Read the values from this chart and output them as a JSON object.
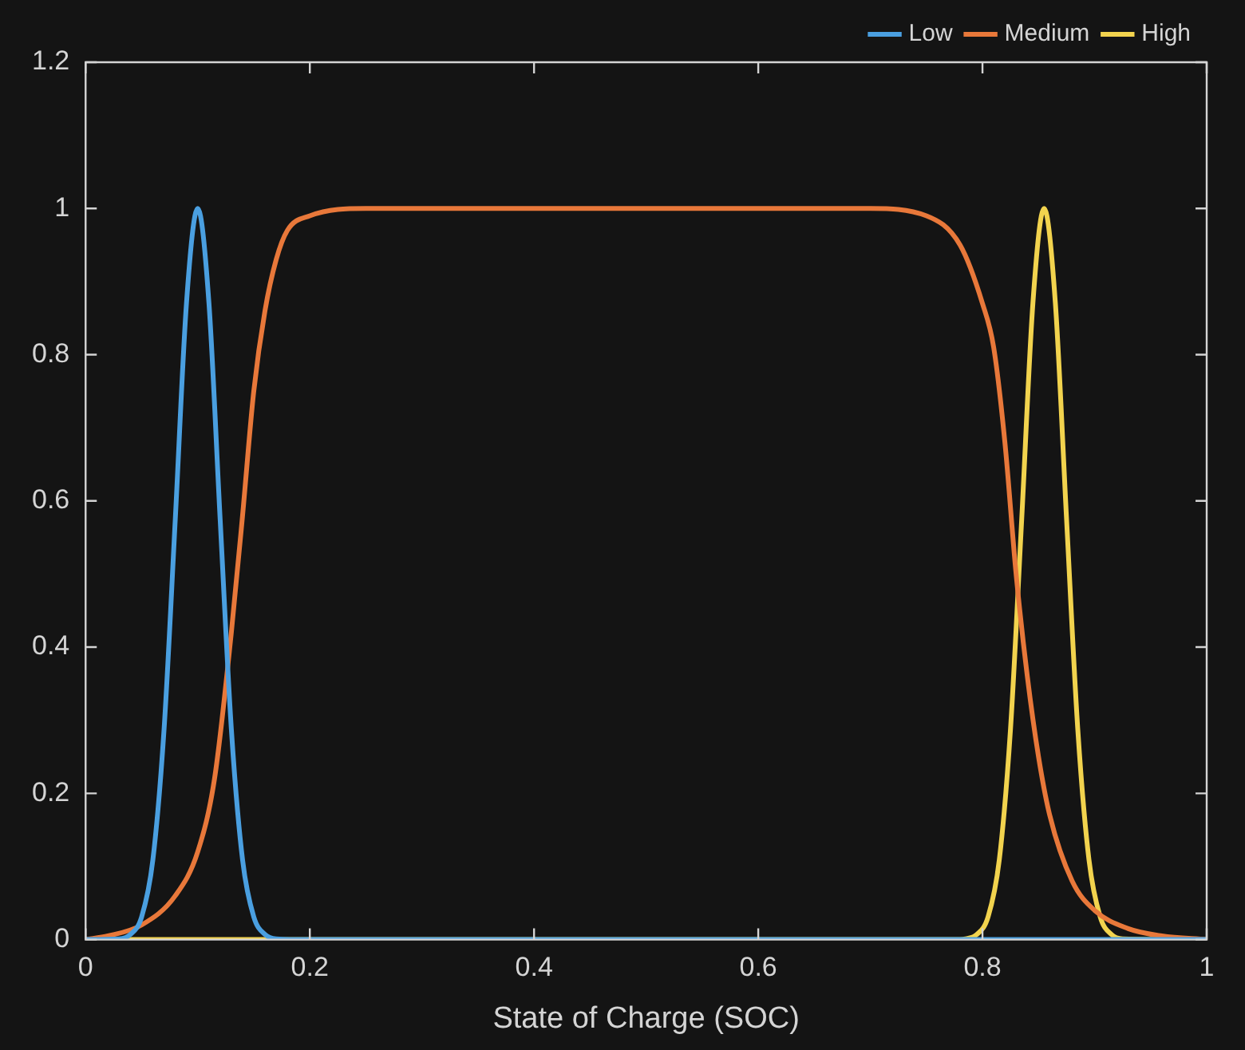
{
  "chart_data": {
    "type": "line",
    "xlabel": "State of Charge (SOC)",
    "xlim": [
      0,
      1
    ],
    "xticks": [
      0,
      0.2,
      0.4,
      0.6,
      0.8,
      1
    ],
    "ylim": [
      0,
      1.2
    ],
    "yticks": [
      0,
      0.2,
      0.4,
      0.6,
      0.8,
      1,
      1.2
    ],
    "grid": false,
    "legend": "top right",
    "marker": "none",
    "line_style": "solid",
    "series": [
      {
        "name": "Low",
        "color": "#4a9fe0",
        "x": [
          0,
          0.03,
          0.04,
          0.05,
          0.06,
          0.07,
          0.08,
          0.09,
          0.1,
          0.11,
          0.12,
          0.13,
          0.14,
          0.15,
          0.16,
          0.17,
          0.2,
          1
        ],
        "values": [
          0,
          0.001,
          0.007,
          0.031,
          0.109,
          0.288,
          0.575,
          0.871,
          1,
          0.871,
          0.575,
          0.288,
          0.109,
          0.031,
          0.007,
          0.001,
          0,
          0
        ]
      },
      {
        "name": "Medium",
        "color": "#e8783a",
        "x": [
          0,
          0.02,
          0.05,
          0.08,
          0.1,
          0.115,
          0.13,
          0.14,
          0.15,
          0.16,
          0.17,
          0.18,
          0.2,
          0.25,
          0.7,
          0.75,
          0.78,
          0.8,
          0.81,
          0.82,
          0.83,
          0.84,
          0.85,
          0.86,
          0.88,
          0.9,
          0.93,
          0.96,
          1
        ],
        "values": [
          0,
          0.005,
          0.02,
          0.06,
          0.12,
          0.22,
          0.42,
          0.58,
          0.75,
          0.86,
          0.93,
          0.97,
          0.99,
          1,
          1,
          0.99,
          0.95,
          0.87,
          0.81,
          0.68,
          0.5,
          0.36,
          0.25,
          0.17,
          0.08,
          0.04,
          0.015,
          0.005,
          0
        ]
      },
      {
        "name": "High",
        "color": "#f2d34e",
        "x": [
          0,
          0.78,
          0.785,
          0.795,
          0.805,
          0.815,
          0.825,
          0.835,
          0.845,
          0.855,
          0.865,
          0.875,
          0.885,
          0.895,
          0.905,
          0.915,
          0.925,
          1
        ],
        "values": [
          0,
          0,
          0.001,
          0.007,
          0.031,
          0.109,
          0.288,
          0.575,
          0.871,
          1,
          0.871,
          0.575,
          0.288,
          0.109,
          0.031,
          0.007,
          0.001,
          0
        ]
      }
    ]
  }
}
